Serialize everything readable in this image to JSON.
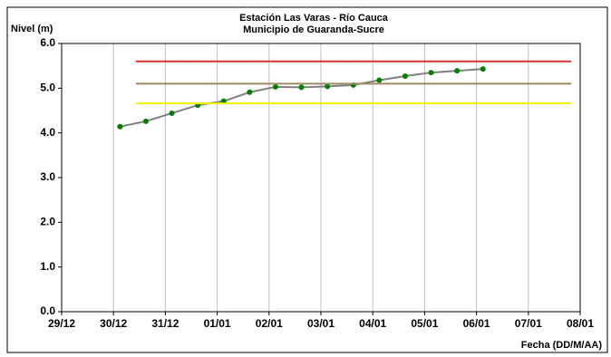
{
  "chart_data": {
    "type": "line",
    "title": "Estación Las Varas - Río Cauca",
    "subtitle": "Municipio de Guaranda-Sucre",
    "y_label": "Nivel (m)",
    "x_label": "Fecha (DD/M/AA)",
    "xlim": [
      0,
      10
    ],
    "ylim": [
      0,
      6
    ],
    "xticks": [
      {
        "value": 0,
        "label": "29/12"
      },
      {
        "value": 1,
        "label": "30/12"
      },
      {
        "value": 2,
        "label": "31/12"
      },
      {
        "value": 3,
        "label": "01/01"
      },
      {
        "value": 4,
        "label": "02/01"
      },
      {
        "value": 5,
        "label": "03/01"
      },
      {
        "value": 6,
        "label": "04/01"
      },
      {
        "value": 7,
        "label": "05/01"
      },
      {
        "value": 8,
        "label": "06/01"
      },
      {
        "value": 9,
        "label": "07/01"
      },
      {
        "value": 10,
        "label": "08/01"
      }
    ],
    "yticks": [
      {
        "value": 0,
        "label": "0.0"
      },
      {
        "value": 1,
        "label": "1.0"
      },
      {
        "value": 2,
        "label": "2.0"
      },
      {
        "value": 3,
        "label": "3.0"
      },
      {
        "value": 4,
        "label": "4.0"
      },
      {
        "value": 5,
        "label": "5.0"
      },
      {
        "value": 6,
        "label": "6.0"
      }
    ],
    "grid": "x",
    "series": [
      {
        "color": "#808080",
        "marker_color": "#008000",
        "x": [
          1.125,
          1.625,
          2.125,
          2.625,
          3.125,
          3.625,
          4.125,
          4.625,
          5.125,
          5.625,
          6.125,
          6.625,
          7.125,
          7.625,
          8.125
        ],
        "values": [
          4.14,
          4.26,
          4.44,
          4.62,
          4.71,
          4.91,
          5.03,
          5.02,
          5.04,
          5.07,
          5.18,
          5.27,
          5.35,
          5.39,
          5.43
        ]
      },
      {
        "color": "#e03030",
        "x": [
          1.43,
          9.83
        ],
        "values": [
          5.6,
          5.6
        ]
      },
      {
        "color": "#a08c60",
        "x": [
          1.43,
          9.83
        ],
        "values": [
          5.1,
          5.1
        ]
      },
      {
        "color": "#f0f000",
        "x": [
          1.43,
          9.83
        ],
        "values": [
          4.66,
          4.66
        ]
      }
    ]
  }
}
